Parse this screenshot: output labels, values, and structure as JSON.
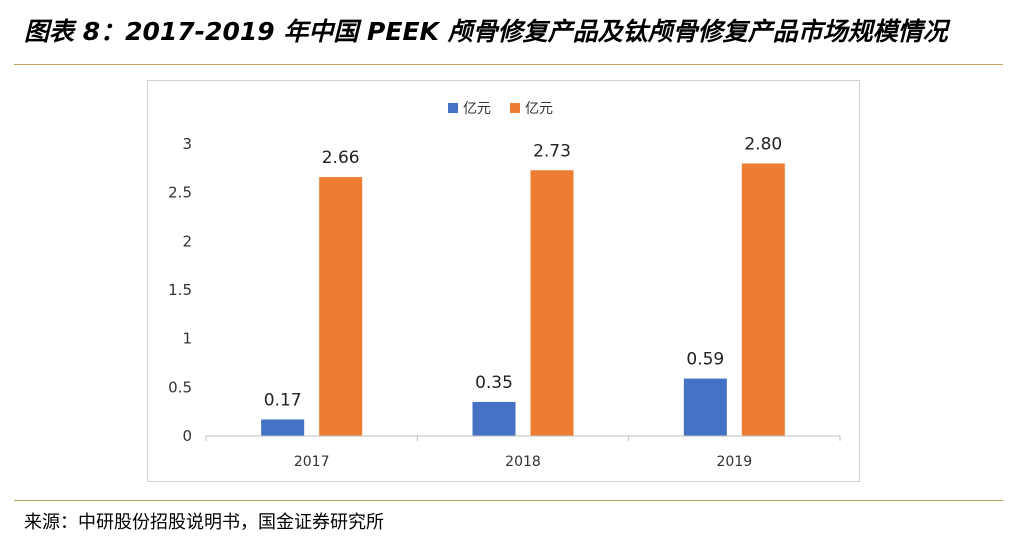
{
  "header": {
    "title": "图表 8：2017-2019 年中国 PEEK 颅骨修复产品及钛颅骨修复产品市场规模情况"
  },
  "footer": {
    "source": "来源：中研股份招股说明书，国金证券研究所"
  },
  "colors": {
    "series_blue": "#4472c4",
    "series_orange": "#ed7d31",
    "axis": "#bfbfbf",
    "rule": "#c8a165"
  },
  "chart_data": {
    "type": "bar",
    "title": "",
    "xlabel": "",
    "ylabel": "",
    "categories": [
      "2017",
      "2018",
      "2019"
    ],
    "series": [
      {
        "name": "亿元",
        "values": [
          0.17,
          0.35,
          0.59
        ],
        "labels": [
          "0.17",
          "0.35",
          "0.59"
        ]
      },
      {
        "name": "亿元",
        "values": [
          2.66,
          2.73,
          2.8
        ],
        "labels": [
          "2.66",
          "2.73",
          "2.80"
        ]
      }
    ],
    "ylim": [
      0,
      3
    ],
    "yticks": [
      "0",
      "0.5",
      "1",
      "1.5",
      "2",
      "2.5",
      "3"
    ],
    "grid": false,
    "legend_position": "top-center"
  }
}
